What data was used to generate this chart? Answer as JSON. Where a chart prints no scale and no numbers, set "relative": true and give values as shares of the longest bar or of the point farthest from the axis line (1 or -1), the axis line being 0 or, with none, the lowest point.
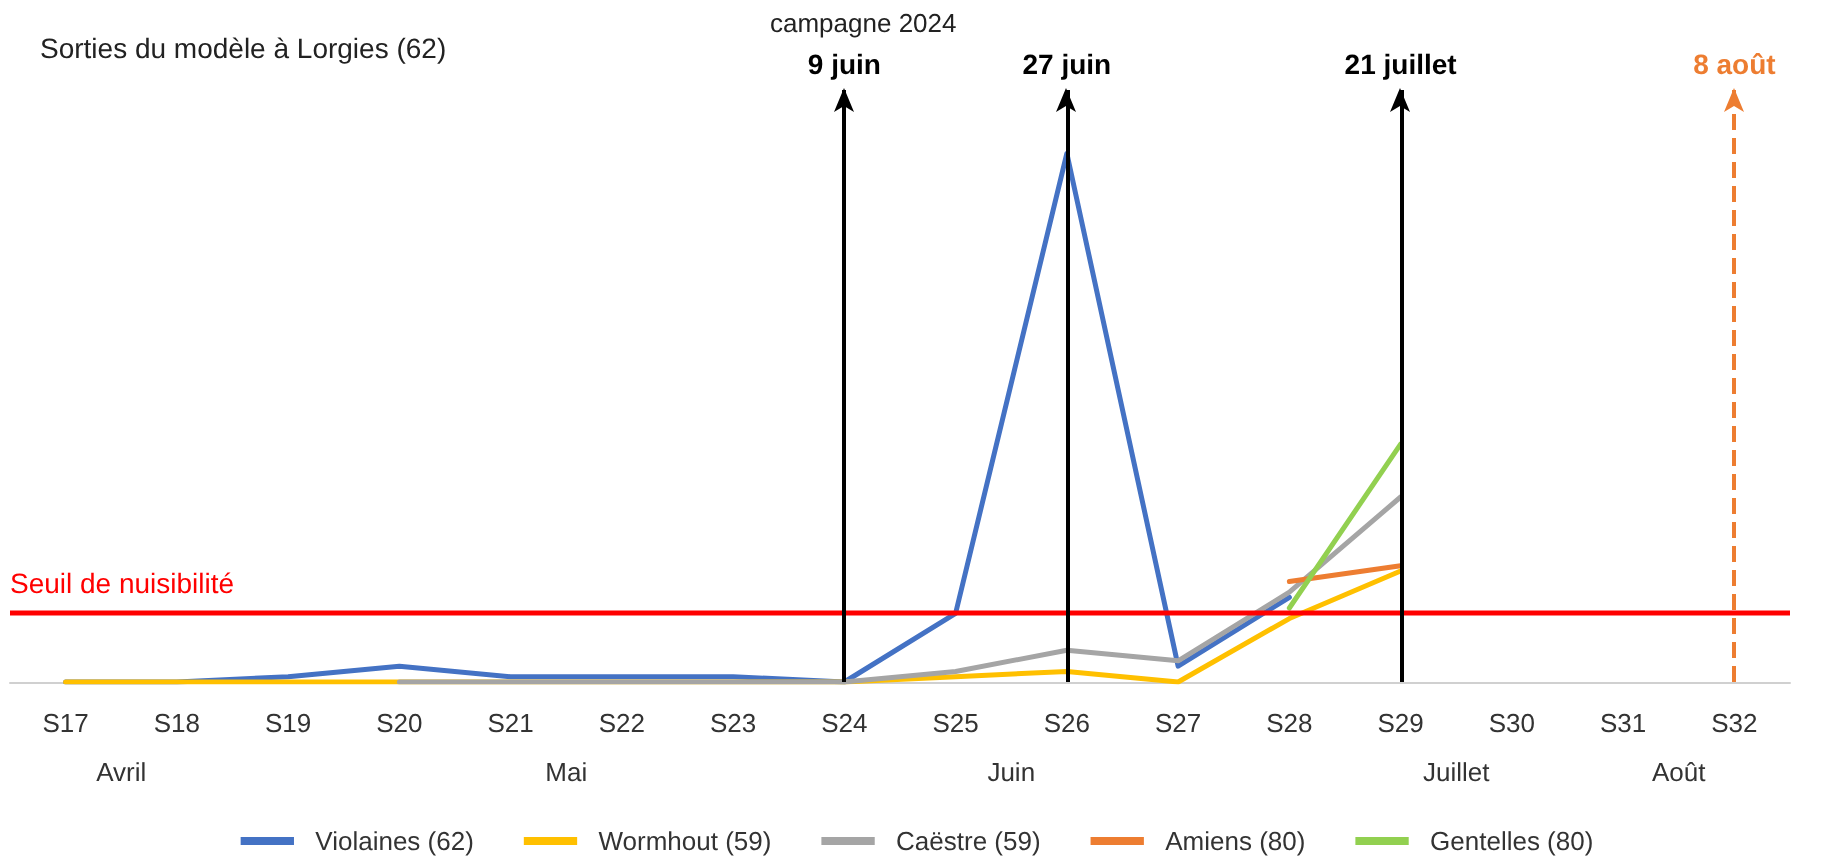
{
  "chart_data": {
    "type": "line",
    "title": "Sorties du modèle à Lorgies (62)",
    "subtitle": "campagne 2024",
    "relative": true,
    "legend": "bottom",
    "categories": [
      "S17",
      "S18",
      "S19",
      "S20",
      "S21",
      "S22",
      "S23",
      "S24",
      "S25",
      "S26",
      "S27",
      "S28",
      "S29",
      "S30",
      "S31",
      "S32"
    ],
    "series": [
      {
        "name": "Violaines (62)",
        "color": "#4472c4",
        "values": [
          0,
          0,
          0.01,
          0.03,
          0.01,
          0.01,
          0.01,
          0,
          0.13,
          1,
          0.03,
          0.16,
          null,
          null,
          null,
          null
        ]
      },
      {
        "name": "Wormhout (59)",
        "color": "#ffc000",
        "values": [
          0,
          0,
          0,
          0,
          0,
          0,
          0,
          0,
          0.01,
          0.02,
          0,
          0.12,
          0.21,
          null,
          null,
          null
        ]
      },
      {
        "name": "Caëstre (59)",
        "color": "#a5a5a5",
        "values": [
          null,
          null,
          null,
          0,
          0,
          0,
          0,
          0,
          0.02,
          0.06,
          0.04,
          0.17,
          0.35,
          null,
          null,
          null
        ]
      },
      {
        "name": "Amiens (80)",
        "color": "#ed7d31",
        "values": [
          null,
          null,
          null,
          null,
          null,
          null,
          null,
          null,
          null,
          null,
          null,
          0.19,
          0.22,
          null,
          null,
          null
        ]
      },
      {
        "name": "Gentelles (80)",
        "color": "#92d050",
        "values": [
          null,
          null,
          null,
          null,
          null,
          null,
          null,
          null,
          null,
          null,
          null,
          0.14,
          0.45,
          null,
          null,
          null
        ]
      }
    ],
    "ref_lines": [
      {
        "axis": "y",
        "value": 0.13,
        "label": "Seuil de nuisibilité",
        "color": "#ff0000"
      },
      {
        "axis": "x",
        "value": "S24",
        "label": "9 juin",
        "color": "#000000"
      },
      {
        "axis": "x",
        "value": "S26",
        "label": "27 juin",
        "color": "#000000"
      },
      {
        "axis": "x",
        "value": "S29",
        "label": "21 juillet",
        "color": "#000000"
      },
      {
        "axis": "x",
        "value": "S32",
        "label": "8 août",
        "color": "#ed7d31",
        "line_style": "dashed"
      }
    ],
    "annotations": [
      "Avril",
      "Mai",
      "Juin",
      "Juillet",
      "Août"
    ]
  }
}
